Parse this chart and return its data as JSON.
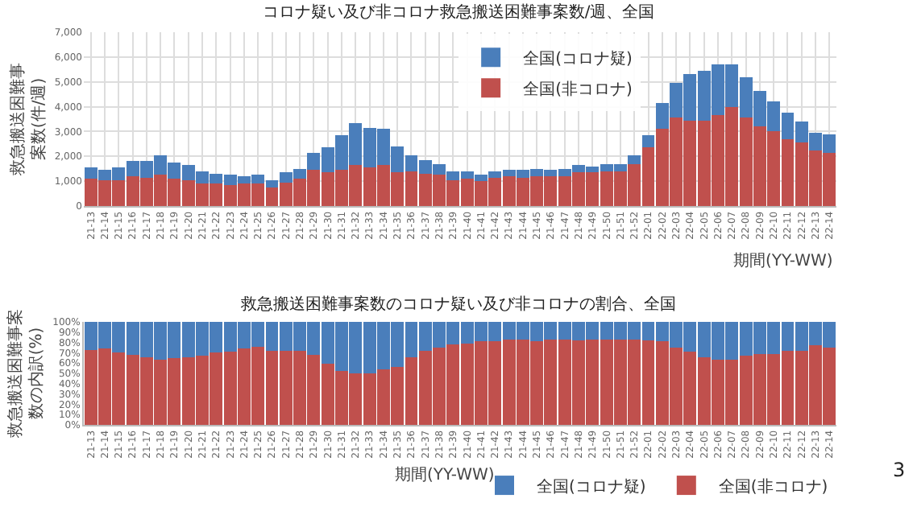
{
  "chart_data": [
    {
      "type": "bar",
      "stacked": true,
      "title": "コロナ疑い及び非コロナ救急搬送困難事案数/週、全国",
      "xlabel": "期間(YY-WW)",
      "ylabel": "救急搬送困難事案数(件/週)",
      "categories": [
        "21-13",
        "21-14",
        "21-15",
        "21-16",
        "21-17",
        "21-18",
        "21-19",
        "21-20",
        "21-21",
        "21-22",
        "21-23",
        "21-24",
        "21-25",
        "21-26",
        "21-27",
        "21-28",
        "21-29",
        "21-30",
        "21-31",
        "21-32",
        "21-33",
        "21-34",
        "21-35",
        "21-36",
        "21-37",
        "21-38",
        "21-39",
        "21-40",
        "21-41",
        "21-42",
        "21-43",
        "21-44",
        "21-45",
        "21-46",
        "21-47",
        "21-48",
        "21-49",
        "21-50",
        "21-51",
        "21-52",
        "22-01",
        "22-02",
        "22-03",
        "22-04",
        "22-05",
        "22-06",
        "22-07",
        "22-08",
        "22-09",
        "22-10",
        "22-11",
        "22-12",
        "22-13",
        "22-14"
      ],
      "series": [
        {
          "name": "全国(非コロナ)",
          "color": "#c0504d",
          "values": [
            1100,
            1050,
            1050,
            1200,
            1150,
            1250,
            1100,
            1050,
            900,
            900,
            850,
            900,
            900,
            750,
            950,
            1100,
            1450,
            1350,
            1450,
            1650,
            1550,
            1650,
            1350,
            1400,
            1300,
            1250,
            1050,
            1100,
            1000,
            1150,
            1200,
            1150,
            1200,
            1200,
            1200,
            1350,
            1350,
            1400,
            1400,
            1700,
            2350,
            3100,
            3550,
            3450,
            3450,
            3650,
            4000,
            3550,
            3200,
            3000,
            2700,
            2550,
            2250,
            2150
          ]
        },
        {
          "name": "全国(コロナ疑)",
          "color": "#4a7ebb",
          "values": [
            450,
            400,
            500,
            600,
            650,
            800,
            650,
            600,
            500,
            400,
            400,
            300,
            350,
            300,
            400,
            400,
            700,
            1000,
            1400,
            1700,
            1600,
            1450,
            1050,
            650,
            550,
            450,
            350,
            300,
            250,
            250,
            250,
            300,
            300,
            250,
            300,
            300,
            250,
            300,
            300,
            350,
            500,
            1050,
            1400,
            1850,
            2000,
            2050,
            1700,
            1650,
            1450,
            1200,
            1050,
            850,
            700,
            750
          ]
        }
      ],
      "ylim": [
        0,
        7000
      ],
      "yticks": [
        {
          "value": 0,
          "label": "0"
        },
        {
          "value": 1000,
          "label": "1,000"
        },
        {
          "value": 2000,
          "label": "2,000"
        },
        {
          "value": 3000,
          "label": "3,000"
        },
        {
          "value": 4000,
          "label": "4,000"
        },
        {
          "value": 5000,
          "label": "5,000"
        },
        {
          "value": 6000,
          "label": "6,000"
        },
        {
          "value": 7000,
          "label": "7,000"
        }
      ],
      "grid": true,
      "legend": "top right"
    },
    {
      "type": "bar",
      "stacked": true,
      "title": "救急搬送困難事案数のコロナ疑い及び非コロナの割合、全国",
      "xlabel": "期間(YY-WW)",
      "ylabel": "救急搬送困難事案数の内訳(%)",
      "categories": [
        "21-13",
        "21-14",
        "21-15",
        "21-16",
        "21-17",
        "21-18",
        "21-19",
        "21-20",
        "21-21",
        "21-22",
        "21-23",
        "21-24",
        "21-25",
        "21-26",
        "21-27",
        "21-28",
        "21-29",
        "21-30",
        "21-31",
        "21-32",
        "21-33",
        "21-34",
        "21-35",
        "21-36",
        "21-37",
        "21-38",
        "21-39",
        "21-40",
        "21-41",
        "21-42",
        "21-43",
        "21-44",
        "21-45",
        "21-46",
        "21-47",
        "21-48",
        "21-49",
        "21-50",
        "21-51",
        "21-52",
        "22-01",
        "22-02",
        "22-03",
        "22-04",
        "22-05",
        "22-06",
        "22-07",
        "22-08",
        "22-09",
        "22-10",
        "22-11",
        "22-12",
        "22-13",
        "22-14"
      ],
      "series": [
        {
          "name": "全国(非コロナ)",
          "color": "#c0504d",
          "values": [
            73,
            74,
            70,
            68,
            66,
            63,
            65,
            66,
            67,
            70,
            71,
            74,
            76,
            72,
            72,
            72,
            68,
            59,
            52,
            50,
            50,
            54,
            56,
            66,
            72,
            75,
            78,
            79,
            81,
            81,
            83,
            83,
            81,
            83,
            83,
            82,
            83,
            83,
            83,
            83,
            82,
            81,
            75,
            71,
            66,
            63,
            63,
            67,
            69,
            69,
            72,
            72,
            77,
            75
          ]
        },
        {
          "name": "全国(コロナ疑)",
          "color": "#4a7ebb",
          "values": [
            27,
            26,
            30,
            32,
            34,
            37,
            35,
            34,
            33,
            30,
            29,
            26,
            24,
            28,
            28,
            28,
            32,
            41,
            48,
            50,
            50,
            46,
            44,
            34,
            28,
            25,
            22,
            21,
            19,
            19,
            17,
            17,
            19,
            17,
            17,
            18,
            17,
            17,
            17,
            17,
            18,
            19,
            25,
            29,
            34,
            37,
            37,
            33,
            31,
            31,
            28,
            28,
            23,
            25
          ]
        }
      ],
      "ylim": [
        0,
        100
      ],
      "yticks": [
        {
          "value": 0,
          "label": "0%"
        },
        {
          "value": 10,
          "label": "10%"
        },
        {
          "value": 20,
          "label": "20%"
        },
        {
          "value": 30,
          "label": "30%"
        },
        {
          "value": 40,
          "label": "40%"
        },
        {
          "value": 50,
          "label": "50%"
        },
        {
          "value": 60,
          "label": "60%"
        },
        {
          "value": 70,
          "label": "70%"
        },
        {
          "value": 80,
          "label": "80%"
        },
        {
          "value": 90,
          "label": "90%"
        },
        {
          "value": 100,
          "label": "100%"
        }
      ],
      "grid": false,
      "legend": "bottom right",
      "annotations": [
        "3"
      ]
    }
  ]
}
